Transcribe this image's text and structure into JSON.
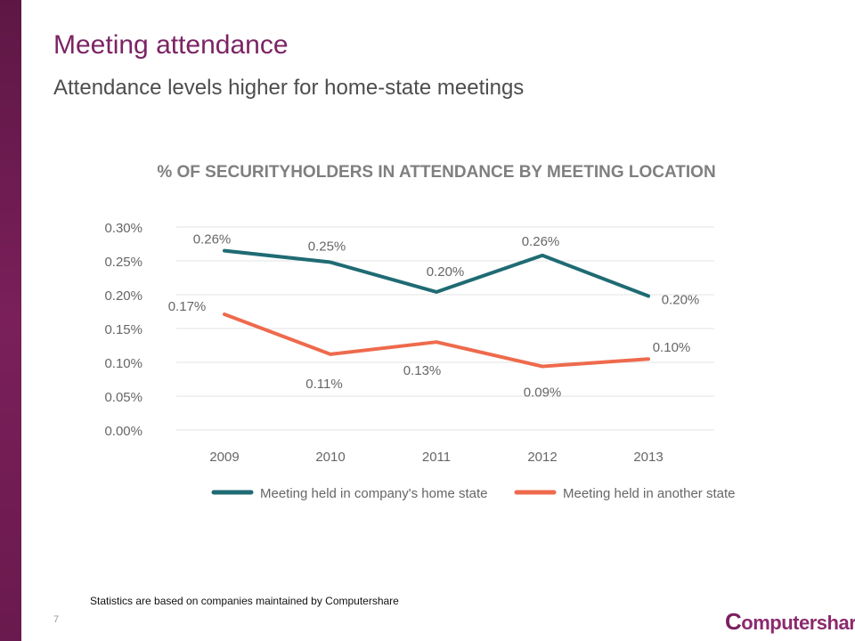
{
  "slide": {
    "title": "Meeting attendance",
    "subtitle": "Attendance levels higher for home-state meetings",
    "footnote": "Statistics are based on companies maintained by Computershare",
    "page_number": "7",
    "logo": {
      "initial": "C",
      "rest": "omputershare"
    }
  },
  "colors": {
    "sidebar": "#6a1a4e",
    "title": "#7b2464",
    "home_series": "#1f6b73",
    "other_series": "#ee6a4c",
    "logo": "#8b2a6e"
  },
  "chart_data": {
    "type": "line",
    "title": "% OF SECURITYHOLDERS IN ATTENDANCE BY MEETING LOCATION",
    "categories": [
      "2009",
      "2010",
      "2011",
      "2012",
      "2013"
    ],
    "ylim": [
      0,
      0.3
    ],
    "yticks": [
      "0.00%",
      "0.05%",
      "0.10%",
      "0.15%",
      "0.20%",
      "0.25%",
      "0.30%"
    ],
    "grid": true,
    "legend_position": "bottom",
    "series": [
      {
        "name": "Meeting held in company's home state",
        "values": [
          0.265,
          0.248,
          0.204,
          0.258,
          0.198
        ],
        "labels": [
          "0.26%",
          "0.25%",
          "0.20%",
          "0.26%",
          "0.20%"
        ]
      },
      {
        "name": "Meeting held in another state",
        "values": [
          0.171,
          0.112,
          0.13,
          0.094,
          0.105
        ],
        "labels": [
          "0.17%",
          "0.11%",
          "0.13%",
          "0.09%",
          "0.10%"
        ]
      }
    ]
  }
}
